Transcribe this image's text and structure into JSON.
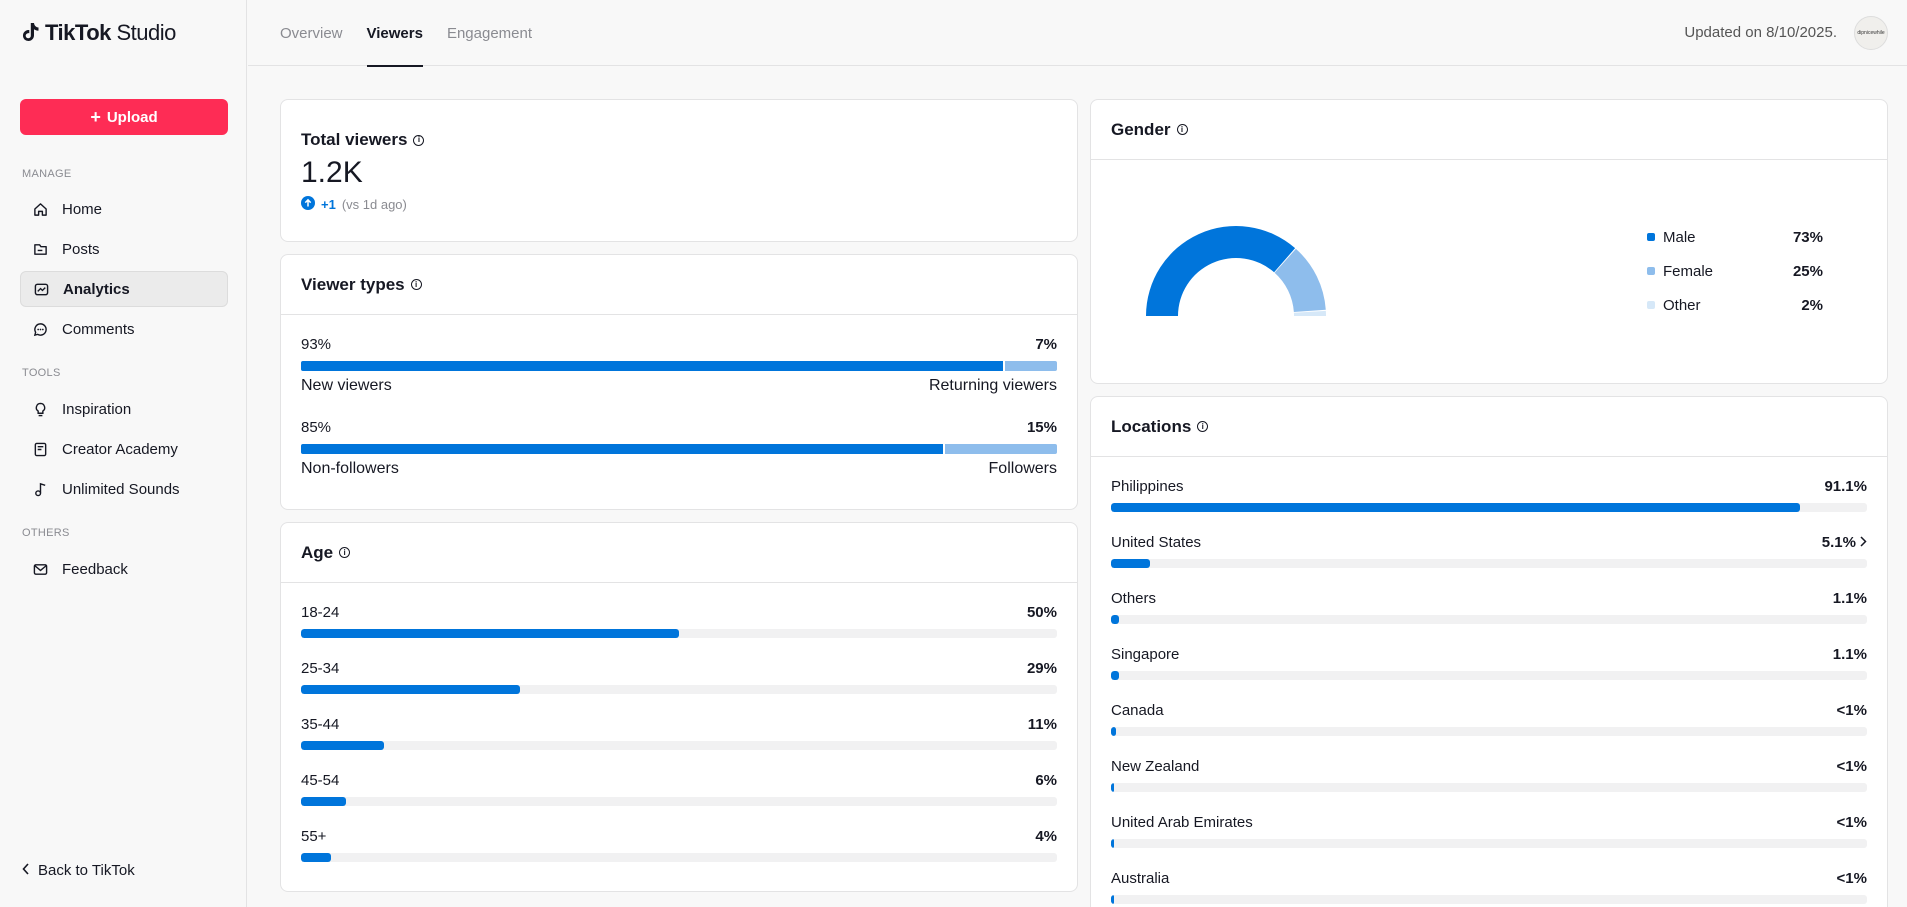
{
  "app": {
    "logo_main": "TikTok",
    "logo_sub": "Studio"
  },
  "sidebar": {
    "upload_label": "Upload",
    "sections": {
      "manage": "MANAGE",
      "tools": "TOOLS",
      "others": "OTHERS"
    },
    "items": [
      {
        "label": "Home",
        "icon": "home-icon"
      },
      {
        "label": "Posts",
        "icon": "posts-icon"
      },
      {
        "label": "Analytics",
        "icon": "analytics-icon"
      },
      {
        "label": "Comments",
        "icon": "comments-icon"
      },
      {
        "label": "Inspiration",
        "icon": "lightbulb-icon"
      },
      {
        "label": "Creator Academy",
        "icon": "book-icon"
      },
      {
        "label": "Unlimited Sounds",
        "icon": "music-note-icon"
      },
      {
        "label": "Feedback",
        "icon": "mail-icon"
      }
    ],
    "back_label": "Back to TikTok"
  },
  "topbar": {
    "tabs": [
      {
        "label": "Overview"
      },
      {
        "label": "Viewers"
      },
      {
        "label": "Engagement"
      }
    ],
    "updated": "Updated on 8/10/2025.",
    "avatar_text": "dipnicewhile"
  },
  "total_viewers": {
    "title": "Total viewers",
    "value": "1.2K",
    "change": "+1",
    "change_note": "(vs 1d ago)"
  },
  "viewer_types": {
    "title": "Viewer types",
    "rows": [
      {
        "left_pct": "93%",
        "right_pct": "7%",
        "left_label": "New viewers",
        "right_label": "Returning viewers",
        "left_value": 93
      },
      {
        "left_pct": "85%",
        "right_pct": "15%",
        "left_label": "Non-followers",
        "right_label": "Followers",
        "left_value": 85
      }
    ]
  },
  "age": {
    "title": "Age",
    "rows": [
      {
        "label": "18-24",
        "pct": "50%",
        "value": 50
      },
      {
        "label": "25-34",
        "pct": "29%",
        "value": 29
      },
      {
        "label": "35-44",
        "pct": "11%",
        "value": 11
      },
      {
        "label": "45-54",
        "pct": "6%",
        "value": 6
      },
      {
        "label": "55+",
        "pct": "4%",
        "value": 4
      }
    ]
  },
  "gender": {
    "title": "Gender",
    "items": [
      {
        "label": "Male",
        "pct": "73%",
        "value": 73,
        "color": "#0075db"
      },
      {
        "label": "Female",
        "pct": "25%",
        "value": 25,
        "color": "#8ebdec"
      },
      {
        "label": "Other",
        "pct": "2%",
        "value": 2,
        "color": "#d6e8f8"
      }
    ]
  },
  "locations": {
    "title": "Locations",
    "rows": [
      {
        "label": "Philippines",
        "pct": "91.1%",
        "value": 91.1
      },
      {
        "label": "United States",
        "pct": "5.1%",
        "value": 5.1,
        "chevron": true
      },
      {
        "label": "Others",
        "pct": "1.1%",
        "value": 1.1
      },
      {
        "label": "Singapore",
        "pct": "1.1%",
        "value": 1.1
      },
      {
        "label": "Canada",
        "pct": "<1%",
        "value": 0.6
      },
      {
        "label": "New Zealand",
        "pct": "<1%",
        "value": 0.4
      },
      {
        "label": "United Arab Emirates",
        "pct": "<1%",
        "value": 0.3
      },
      {
        "label": "Australia",
        "pct": "<1%",
        "value": 0.3
      }
    ]
  }
}
